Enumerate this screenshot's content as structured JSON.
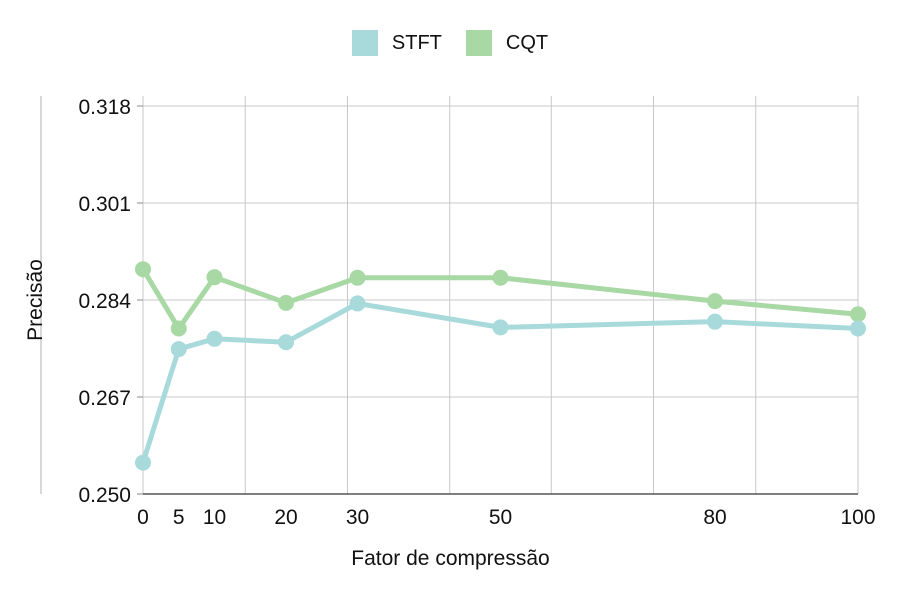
{
  "legend": {
    "items": [
      {
        "label": "STFT",
        "color": "#a8dadb"
      },
      {
        "label": "CQT",
        "color": "#a8d8a4"
      }
    ]
  },
  "chart_data": {
    "type": "line",
    "title": "",
    "xlabel": "Fator de compressão",
    "ylabel": "Precisão",
    "x": [
      0,
      5,
      10,
      20,
      30,
      50,
      80,
      100
    ],
    "x_tick_labels": [
      "0",
      "5",
      "10",
      "20",
      "30",
      "50",
      "80",
      "100"
    ],
    "y_tick_labels": [
      "0.250",
      "0.267",
      "0.284",
      "0.301",
      "0.318"
    ],
    "ylim": [
      0.25,
      0.318
    ],
    "xlim": [
      0,
      100
    ],
    "x_gridlines": [
      0,
      14.3,
      28.6,
      42.9,
      57.1,
      71.4,
      85.7,
      100
    ],
    "grid": true,
    "legend_position": "top-center",
    "series": [
      {
        "name": "STFT",
        "color": "#a8dadb",
        "values": [
          0.2555,
          0.2754,
          0.2772,
          0.2766,
          0.2834,
          0.2792,
          0.2802,
          0.279
        ]
      },
      {
        "name": "CQT",
        "color": "#a8d8a4",
        "values": [
          0.2894,
          0.279,
          0.288,
          0.2835,
          0.2879,
          0.2879,
          0.2838,
          0.2815
        ]
      }
    ]
  }
}
